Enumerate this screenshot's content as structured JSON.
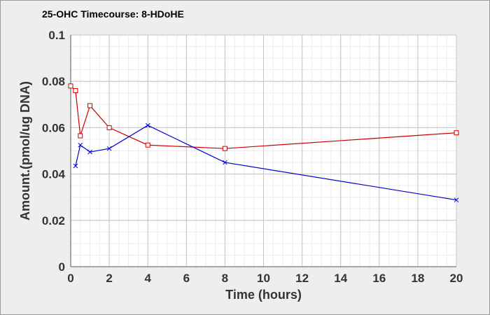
{
  "chart_data": {
    "type": "line",
    "title": "25-OHC Timecourse: 8-HDoHE",
    "xlabel": "Time (hours)",
    "ylabel": "Amount.(pmol/ug DNA)",
    "xlim": [
      0,
      20
    ],
    "ylim": [
      0,
      0.1
    ],
    "xticks": [
      "0",
      "2",
      "4",
      "6",
      "8",
      "10",
      "12",
      "14",
      "16",
      "18",
      "20"
    ],
    "yticks": [
      "0",
      "0.02",
      "0.04",
      "0.06",
      "0.08",
      "0.1"
    ],
    "grid": true,
    "series": [
      {
        "color": "#cc0000",
        "marker": "square",
        "points": [
          [
            0,
            0.078
          ],
          [
            0.25,
            0.076
          ],
          [
            0.5,
            0.0565
          ],
          [
            1,
            0.0695
          ],
          [
            2,
            0.06
          ],
          [
            4,
            0.0525
          ],
          [
            8,
            0.051
          ],
          [
            20,
            0.0578
          ]
        ]
      },
      {
        "color": "#0000cc",
        "marker": "x",
        "points": [
          [
            0.25,
            0.0435
          ],
          [
            0.5,
            0.0525
          ],
          [
            1,
            0.0495
          ],
          [
            2,
            0.051
          ],
          [
            4,
            0.061
          ],
          [
            8,
            0.045
          ],
          [
            20,
            0.0288
          ]
        ]
      }
    ]
  }
}
